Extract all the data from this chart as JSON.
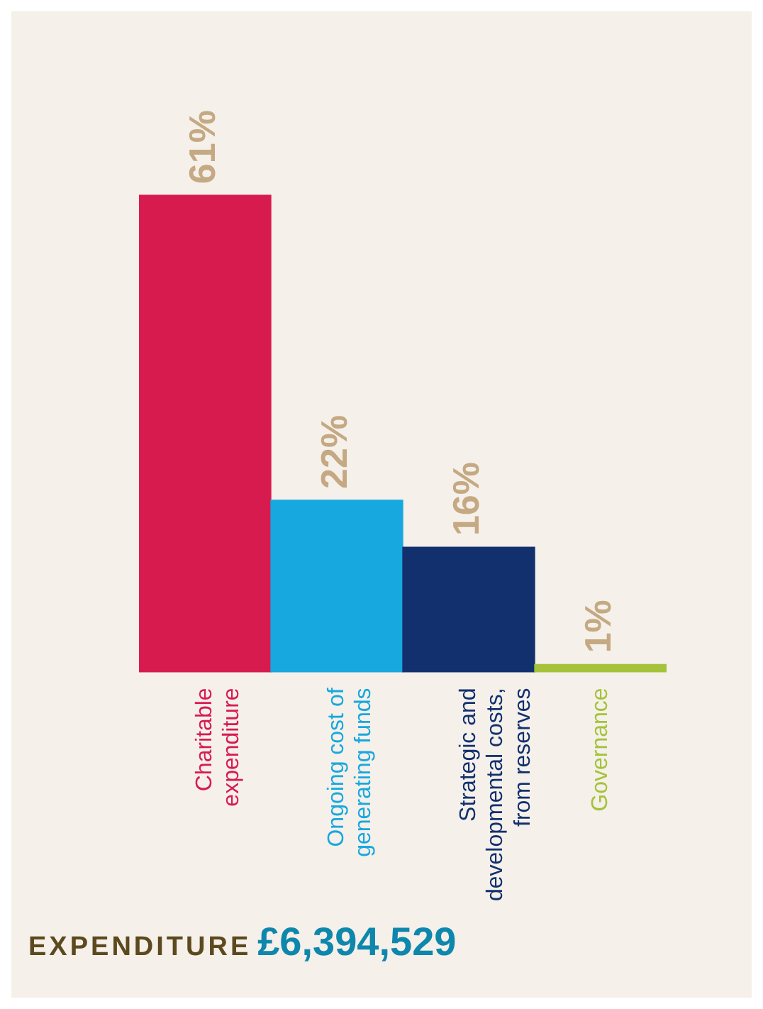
{
  "chart_data": {
    "type": "bar",
    "title": "EXPENDITURE",
    "subtitle": "£6,394,529",
    "categories": [
      "Charitable expenditure",
      "Ongoing cost of generating funds",
      "Strategic and developmental costs, from reserves",
      "Governance"
    ],
    "values": [
      61,
      22,
      16,
      1
    ],
    "colors": [
      "#d81b4f",
      "#17a8df",
      "#12306e",
      "#a5c23a"
    ],
    "value_labels": [
      "61%",
      "22%",
      "16%",
      "1%"
    ],
    "grid": false,
    "legend": false
  }
}
